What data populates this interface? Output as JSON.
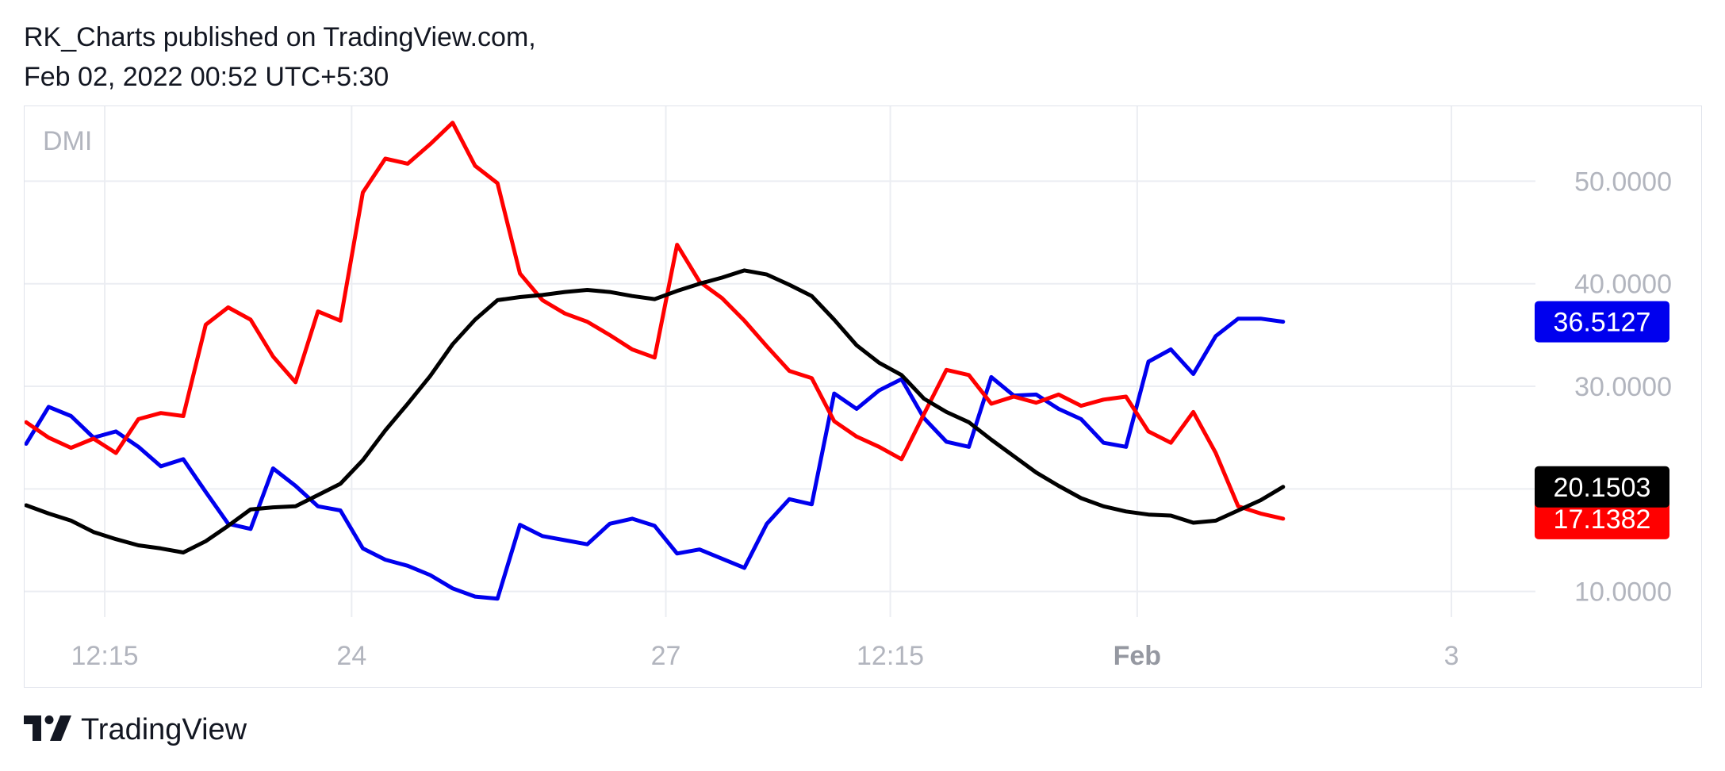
{
  "header": {
    "line1": "RK_Charts published on TradingView.com,",
    "line2": "Feb 02, 2022 00:52 UTC+5:30"
  },
  "footer": {
    "brand": "TradingView",
    "logo_icon": "tradingview-logo-icon"
  },
  "colors": {
    "background": "#ffffff",
    "grid": "#ebedf2",
    "axis_text": "#b2b5be",
    "axis_text_strong": "#9598a1",
    "title_text": "#b2b5be",
    "plus_di": "#0000ee",
    "minus_di": "#ff0000",
    "adx": "#000000"
  },
  "chart_data": {
    "type": "line",
    "title": "DMI",
    "ylim": [
      7.5,
      57.3
    ],
    "grid": true,
    "x_ticks": [
      {
        "label": "12:15",
        "index": 3.5,
        "bold": false
      },
      {
        "label": "24",
        "index": 14.5,
        "bold": false
      },
      {
        "label": "27",
        "index": 28.5,
        "bold": false
      },
      {
        "label": "12:15",
        "index": 38.5,
        "bold": false
      },
      {
        "label": "Feb",
        "index": 49.5,
        "bold": true
      },
      {
        "label": "3",
        "index": 63.5,
        "bold": false
      }
    ],
    "y_ticks": [
      10,
      20,
      30,
      40,
      50
    ],
    "y_tick_labels": [
      "10.0000",
      "",
      "30.0000",
      "40.0000",
      "50.0000"
    ],
    "x_range": [
      0,
      66.5
    ],
    "series": [
      {
        "color_key": "plus_di",
        "last_label": "36.5127",
        "values": [
          24.4,
          28.0,
          27.1,
          25.0,
          25.6,
          24.1,
          22.2,
          22.9,
          19.7,
          16.6,
          16.1,
          22.0,
          20.3,
          18.3,
          17.9,
          14.2,
          13.1,
          12.5,
          11.6,
          10.3,
          9.5,
          9.3,
          16.5,
          15.4,
          15.0,
          14.6,
          16.6,
          17.1,
          16.4,
          13.7,
          14.1,
          13.2,
          12.3,
          16.6,
          19.0,
          18.5,
          29.3,
          27.8,
          29.6,
          30.7,
          26.9,
          24.6,
          24.1,
          30.9,
          29.1,
          29.2,
          27.8,
          26.8,
          24.5,
          24.1,
          32.4,
          33.6,
          31.2,
          34.9,
          36.6,
          36.6,
          36.3
        ]
      },
      {
        "color_key": "minus_di",
        "last_label": "17.1382",
        "values": [
          26.5,
          25.0,
          24.0,
          24.9,
          23.5,
          26.8,
          27.4,
          27.1,
          36.0,
          37.7,
          36.5,
          32.9,
          30.4,
          37.3,
          36.4,
          48.9,
          52.2,
          51.7,
          53.6,
          55.7,
          51.5,
          49.8,
          41.0,
          38.4,
          37.1,
          36.3,
          35.0,
          33.6,
          32.8,
          43.8,
          40.2,
          38.6,
          36.4,
          33.9,
          31.5,
          30.8,
          26.6,
          25.1,
          24.1,
          22.9,
          27.3,
          31.6,
          31.1,
          28.3,
          29.0,
          28.4,
          29.2,
          28.1,
          28.7,
          29.0,
          25.6,
          24.5,
          27.5,
          23.5,
          18.3,
          17.6,
          17.1
        ]
      },
      {
        "color_key": "adx",
        "last_label": "20.1503",
        "values": [
          18.4,
          17.6,
          16.9,
          15.8,
          15.1,
          14.5,
          14.2,
          13.8,
          14.9,
          16.4,
          18.0,
          18.2,
          18.3,
          19.4,
          20.5,
          22.8,
          25.7,
          28.3,
          31.0,
          34.1,
          36.5,
          38.4,
          38.7,
          38.9,
          39.2,
          39.4,
          39.2,
          38.8,
          38.5,
          39.3,
          40.0,
          40.6,
          41.3,
          40.9,
          39.9,
          38.8,
          36.5,
          34.0,
          32.3,
          31.1,
          28.8,
          27.5,
          26.5,
          24.8,
          23.2,
          21.6,
          20.3,
          19.1,
          18.3,
          17.8,
          17.5,
          17.4,
          16.7,
          16.9,
          17.9,
          18.9,
          20.2
        ]
      }
    ]
  }
}
